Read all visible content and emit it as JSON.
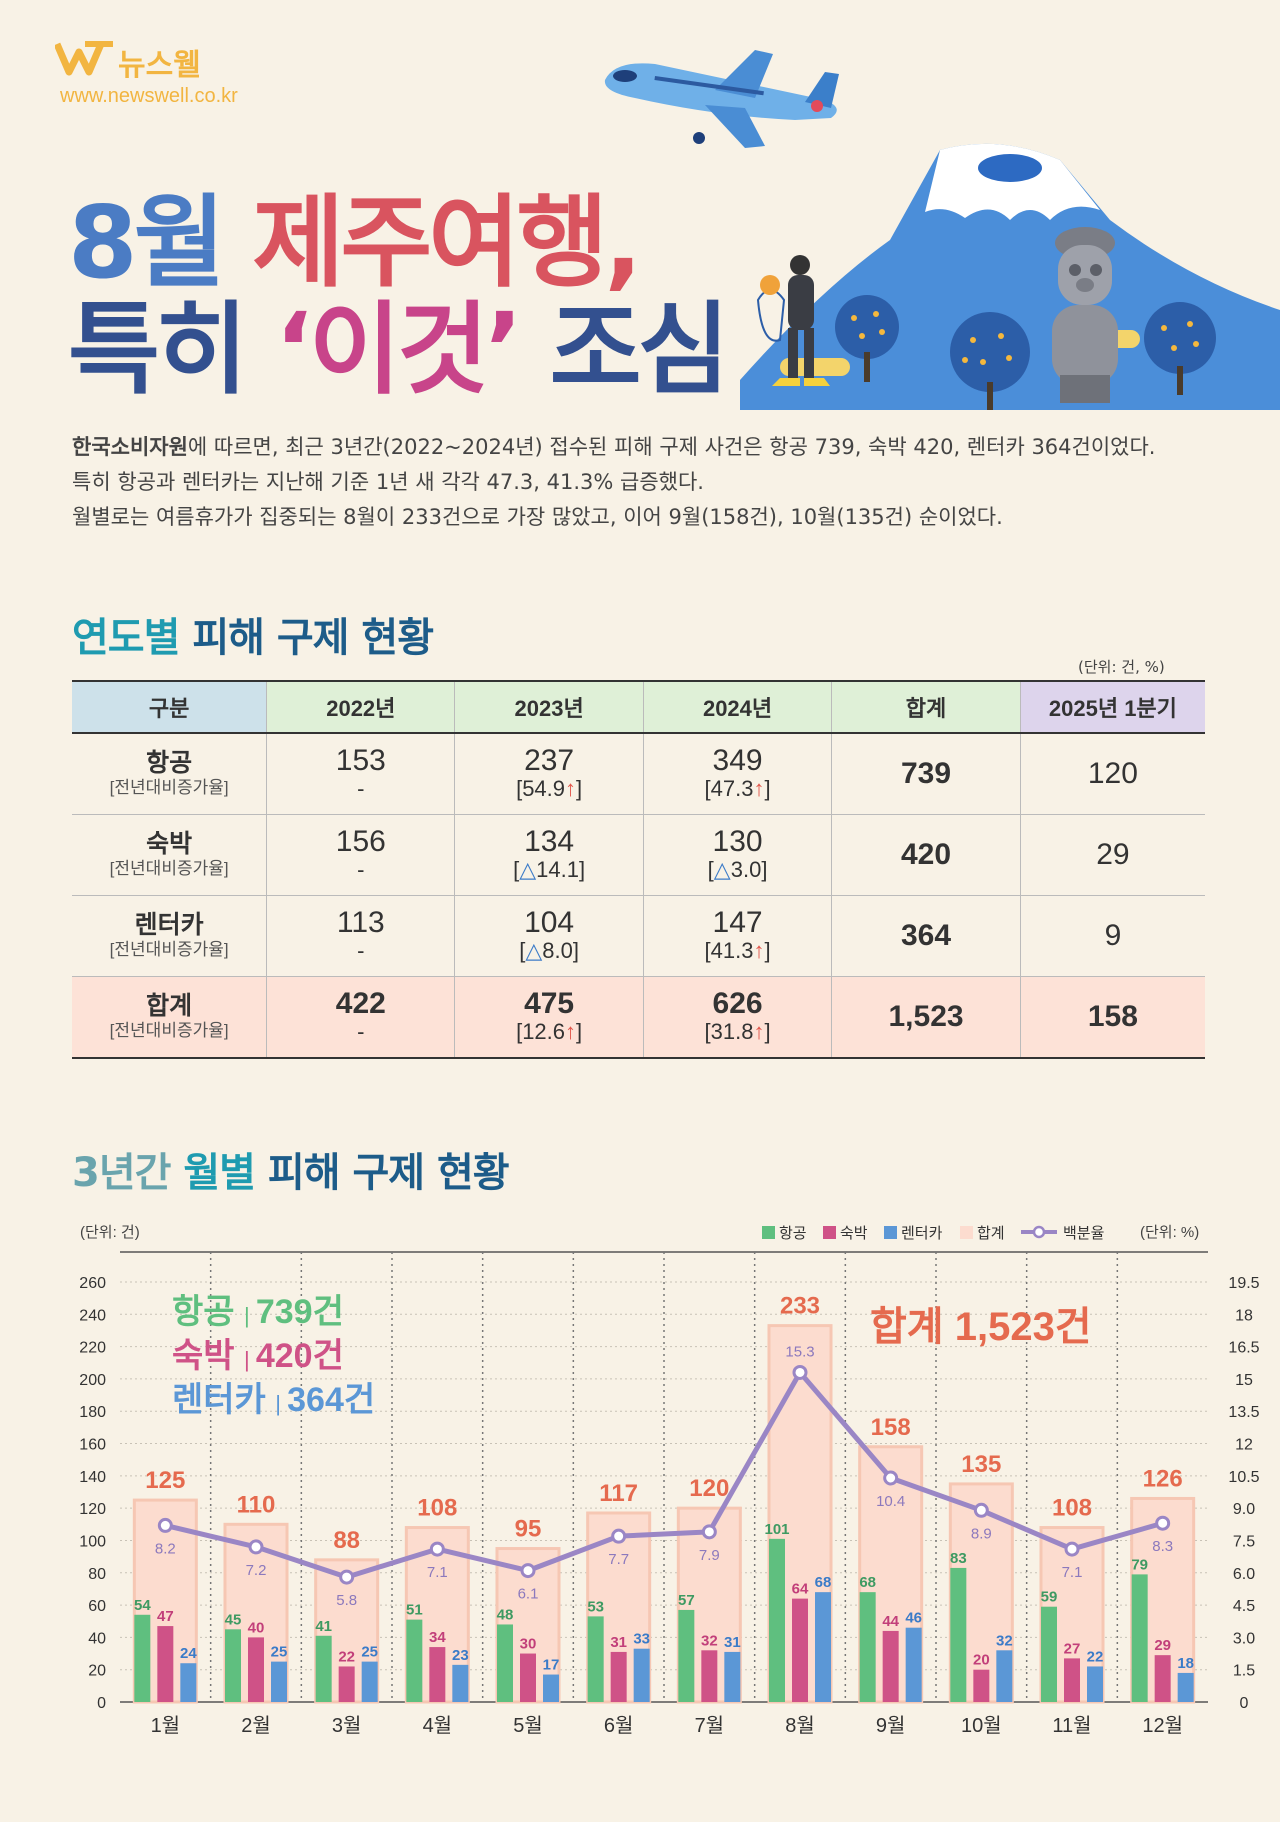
{
  "brand": {
    "name": "뉴스웰",
    "url": "www.newswell.co.kr"
  },
  "headline": {
    "line1_a": "8월",
    "line1_b": "제주여행,",
    "line2_a": "특히",
    "line2_b": "‘이것’",
    "line2_c": "조심"
  },
  "intro": {
    "source": "한국소비자원",
    "p1": "에 따르면, 최근 3년간(2022~2024년) 접수된 피해 구제 사건은 항공 739, 숙박 420, 렌터카 364건이었다.",
    "p2": "특히 항공과 렌터카는 지난해 기준 1년 새 각각 47.3, 41.3% 급증했다.",
    "p3": "월별로는 여름휴가가 집중되는 8월이 233건으로 가장 많았고, 이어 9월(158건), 10월(135건) 순이었다."
  },
  "table_section": {
    "title_a": "연도별",
    "title_b": "피해 구제 현황",
    "unit": "(단위: 건, %)",
    "headers": [
      "구분",
      "2022년",
      "2023년",
      "2024년",
      "합계",
      "2025년 1분기"
    ],
    "header_colors": [
      "#cde1ea",
      "#dff0d7",
      "#dff0d7",
      "#dff0d7",
      "#dff0d7",
      "#ddd4ec"
    ],
    "sub_label": "[전년대비증가율]",
    "rows": [
      {
        "name": "항공",
        "y2022": "153",
        "y2022_rate": "-",
        "y2023": "237",
        "y2023_rate": "54.9",
        "y2023_dir": "↑",
        "y2024": "349",
        "y2024_rate": "47.3",
        "y2024_dir": "↑",
        "total": "739",
        "q1_2025": "120"
      },
      {
        "name": "숙박",
        "y2022": "156",
        "y2022_rate": "-",
        "y2023": "134",
        "y2023_rate": "14.1",
        "y2023_dir": "△",
        "y2024": "130",
        "y2024_rate": "3.0",
        "y2024_dir": "△",
        "total": "420",
        "q1_2025": "29"
      },
      {
        "name": "렌터카",
        "y2022": "113",
        "y2022_rate": "-",
        "y2023": "104",
        "y2023_rate": "8.0",
        "y2023_dir": "△",
        "y2024": "147",
        "y2024_rate": "41.3",
        "y2024_dir": "↑",
        "total": "364",
        "q1_2025": "9"
      },
      {
        "name": "합계",
        "y2022": "422",
        "y2022_rate": "-",
        "y2023": "475",
        "y2023_rate": "12.6",
        "y2023_dir": "↑",
        "y2024": "626",
        "y2024_rate": "31.8",
        "y2024_dir": "↑",
        "total": "1,523",
        "q1_2025": "158"
      }
    ]
  },
  "chart_section": {
    "title_a": "3년간",
    "title_b": "월별",
    "title_c": "피해 구제 현황"
  },
  "chart_data": {
    "type": "bar",
    "categories": [
      "1월",
      "2월",
      "3월",
      "4월",
      "5월",
      "6월",
      "7월",
      "8월",
      "9월",
      "10월",
      "11월",
      "12월"
    ],
    "series": [
      {
        "name": "항공",
        "color": "#5fbf7f",
        "values": [
          54,
          45,
          41,
          51,
          48,
          53,
          57,
          101,
          68,
          83,
          59,
          79
        ]
      },
      {
        "name": "숙박",
        "color": "#cf5287",
        "values": [
          47,
          40,
          22,
          34,
          30,
          31,
          32,
          64,
          44,
          20,
          27,
          29
        ]
      },
      {
        "name": "렌터카",
        "color": "#5b97d6",
        "values": [
          24,
          25,
          25,
          23,
          17,
          33,
          31,
          68,
          46,
          32,
          22,
          18
        ]
      },
      {
        "name": "합계",
        "color": "#fcdccf",
        "values": [
          125,
          110,
          88,
          108,
          95,
          117,
          120,
          233,
          158,
          135,
          108,
          126
        ]
      }
    ],
    "line_series": {
      "name": "백분율",
      "color": "#9a86c5",
      "values": [
        8.2,
        7.2,
        5.8,
        7.1,
        6.1,
        7.7,
        7.9,
        15.3,
        10.4,
        8.9,
        7.1,
        8.3
      ]
    },
    "y_left": {
      "unit": "(단위: 건)",
      "ticks": [
        "0",
        "20",
        "40",
        "60",
        "80",
        "100",
        "120",
        "140",
        "160",
        "180",
        "200",
        "220",
        "240",
        "260"
      ],
      "lim": [
        0,
        260
      ]
    },
    "y_right": {
      "unit": "(단위: %)",
      "ticks": [
        "0",
        "1.5",
        "3.0",
        "4.5",
        "6.0",
        "7.5",
        "9.0",
        "10.5",
        "12",
        "13.5",
        "15",
        "16.5",
        "18",
        "19.5"
      ],
      "lim": [
        0,
        19.5
      ]
    },
    "annotations": {
      "air": "항공",
      "air_val": "739건",
      "stay": "숙박",
      "stay_val": "420건",
      "car": "렌터카",
      "car_val": "364건",
      "sep": "|",
      "total": "합계 1,523건"
    },
    "legend_position": "top-right"
  }
}
